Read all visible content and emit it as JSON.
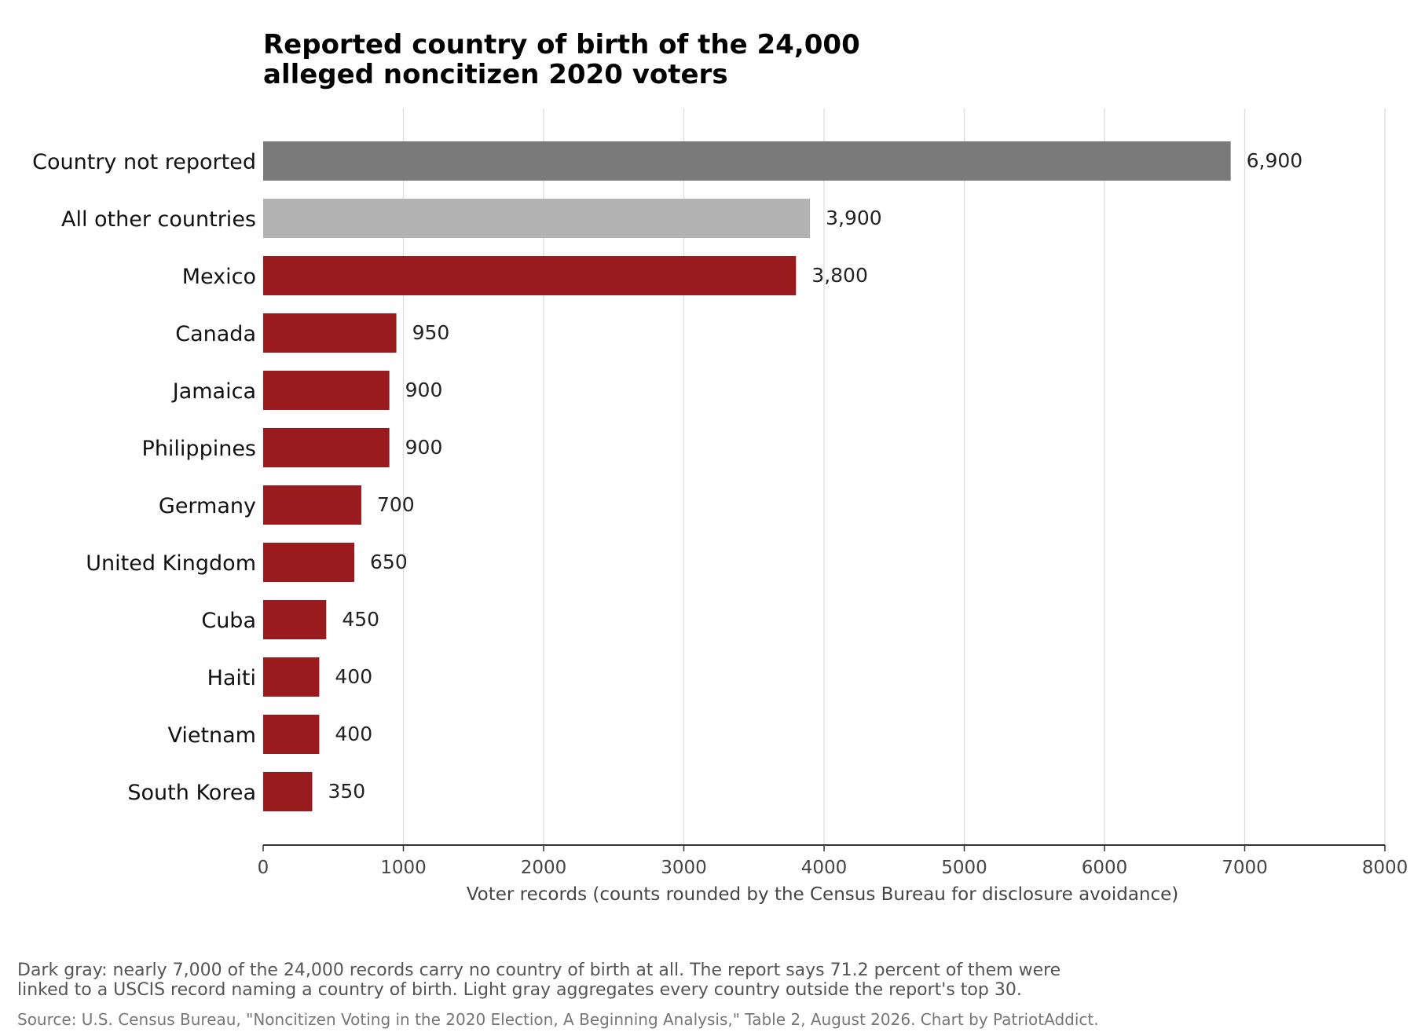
{
  "chart_data": {
    "type": "bar",
    "orientation": "horizontal",
    "title_lines": [
      "Reported country of birth of the 24,000",
      "alleged noncitizen 2020 voters"
    ],
    "categories": [
      "Country not reported",
      "All other countries",
      "Mexico",
      "Canada",
      "Jamaica",
      "Philippines",
      "Germany",
      "United Kingdom",
      "Cuba",
      "Haiti",
      "Vietnam",
      "South Korea"
    ],
    "values": [
      6900,
      3900,
      3800,
      950,
      900,
      900,
      700,
      650,
      450,
      400,
      400,
      350
    ],
    "value_labels": [
      "6,900",
      "3,900",
      "3,800",
      "950",
      "900",
      "900",
      "700",
      "650",
      "450",
      "400",
      "400",
      "350"
    ],
    "bar_colors": [
      "#7a7a7a",
      "#b3b3b3",
      "#991b1e",
      "#991b1e",
      "#991b1e",
      "#991b1e",
      "#991b1e",
      "#991b1e",
      "#991b1e",
      "#991b1e",
      "#991b1e",
      "#991b1e"
    ],
    "xlabel": "Voter records (counts rounded by the Census Bureau for disclosure avoidance)",
    "xlim": [
      0,
      8000
    ],
    "xticks": [
      0,
      1000,
      2000,
      3000,
      4000,
      5000,
      6000,
      7000,
      8000
    ],
    "grid": "vertical",
    "legend": "none",
    "note_lines": [
      "Dark gray: nearly 7,000 of the 24,000 records carry no country of birth at all. The report says 71.2 percent of them were",
      "linked to a USCIS record naming a country of birth. Light gray aggregates every country outside the report's top 30."
    ],
    "source": "Source: U.S. Census Bureau, \"Noncitizen Voting in the 2020 Election, A Beginning Analysis,\" Table 2, August 2026.  Chart by PatriotAddict."
  },
  "colors": {
    "highlight": "#991b1e",
    "not_reported": "#7a7a7a",
    "other": "#b3b3b3",
    "grid": "#dddddd",
    "axis": "#333333",
    "text": "#111111",
    "muted_text": "#555555",
    "source_text": "#777777"
  }
}
